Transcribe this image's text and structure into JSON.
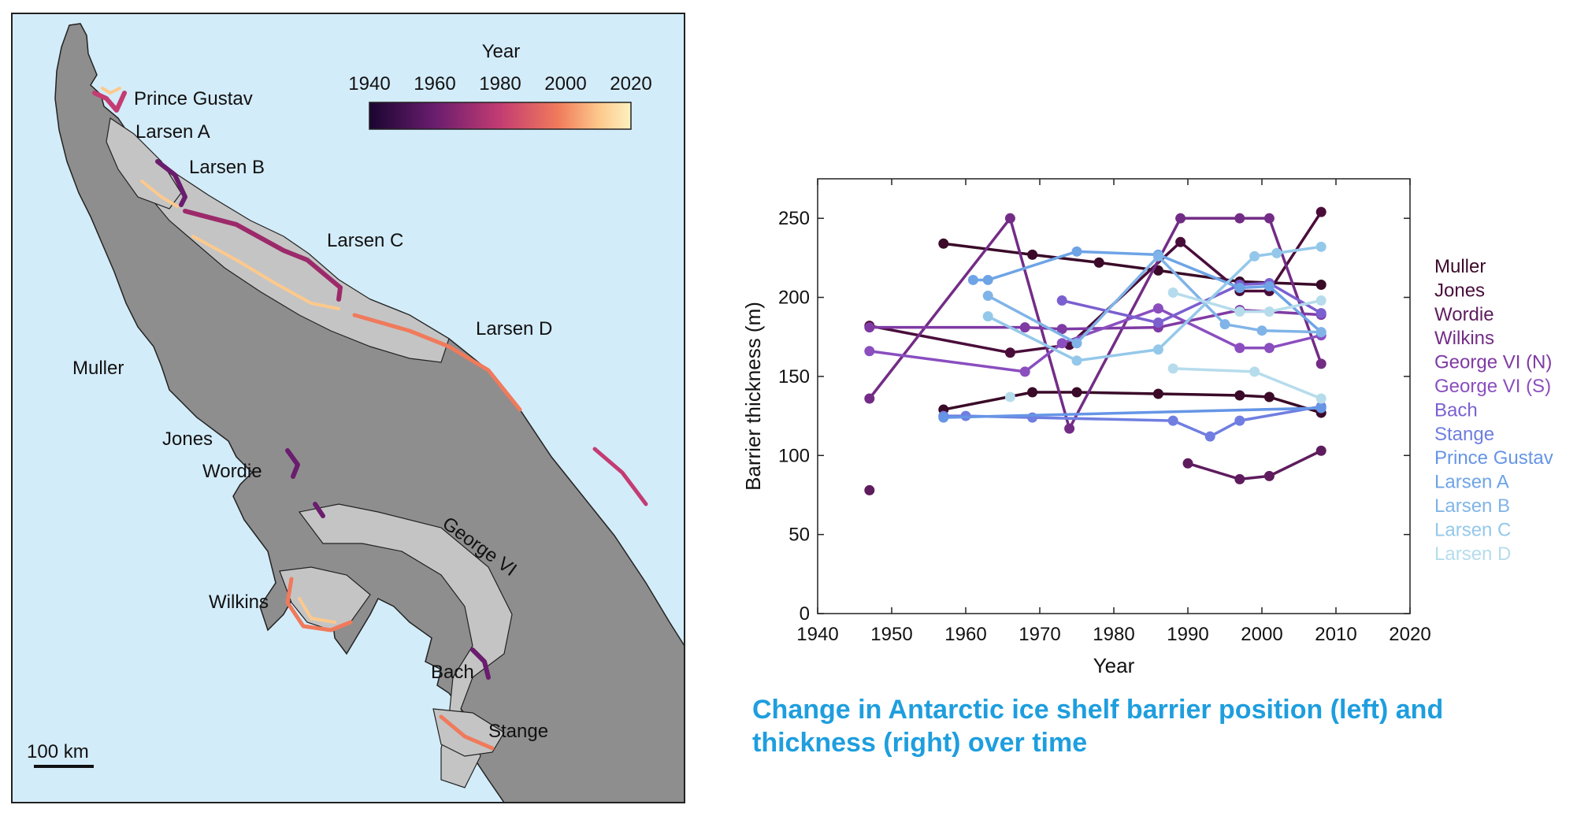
{
  "map": {
    "colorbar_title": "Year",
    "colorbar_ticks": [
      "1940",
      "1960",
      "1980",
      "2000",
      "2020"
    ],
    "colorbar_colors": [
      "#1a0530",
      "#6a1d6e",
      "#c33c72",
      "#f07a5b",
      "#fdc98c",
      "#fdf1c0"
    ],
    "labels": [
      "Prince Gustav",
      "Larsen A",
      "Larsen B",
      "Larsen C",
      "Larsen D",
      "Muller",
      "Jones",
      "Wordie",
      "George VI",
      "Wilkins",
      "Bach",
      "Stange"
    ],
    "scale_bar": "100 km",
    "colors": {
      "ocean": "#d3ecf9",
      "land": "#8e8e8e",
      "ice_shelf": "#c4c4c4"
    }
  },
  "chart_data": {
    "type": "line",
    "xlabel": "Year",
    "ylabel": "Barrier thickness (m)",
    "xlim": [
      1940,
      2020
    ],
    "ylim": [
      0,
      275
    ],
    "xticks": [
      1940,
      1950,
      1960,
      1970,
      1980,
      1990,
      2000,
      2010,
      2020
    ],
    "yticks": [
      0,
      50,
      100,
      150,
      200,
      250
    ],
    "grid": false,
    "legend_position": "right",
    "series": [
      {
        "name": "Muller",
        "color": "#3a0a28",
        "segments": [
          [
            [
              1957,
              234
            ],
            [
              1969,
              227
            ],
            [
              1978,
              222
            ],
            [
              1986,
              217
            ],
            [
              1997,
              210
            ],
            [
              2008,
              208
            ]
          ],
          [
            [
              1957,
              129
            ],
            [
              1969,
              140
            ],
            [
              1975,
              140
            ],
            [
              1986,
              139
            ],
            [
              1997,
              138
            ],
            [
              2001,
              137
            ],
            [
              2008,
              127
            ]
          ]
        ]
      },
      {
        "name": "Jones",
        "color": "#4a0d3a",
        "segments": [
          [
            [
              1947,
              182
            ],
            [
              1966,
              165
            ],
            [
              1974,
              170
            ],
            [
              1989,
              235
            ],
            [
              1997,
              204
            ],
            [
              2001,
              204
            ],
            [
              2008,
              254
            ]
          ]
        ]
      },
      {
        "name": "Wordie",
        "color": "#5e1c5e",
        "segments": [
          [
            [
              1947,
              78
            ]
          ],
          [
            [
              1990,
              95
            ],
            [
              1997,
              85
            ],
            [
              2001,
              87
            ],
            [
              2008,
              103
            ]
          ]
        ]
      },
      {
        "name": "Wilkins",
        "color": "#732c86",
        "segments": [
          [
            [
              1947,
              136
            ],
            [
              1966,
              250
            ],
            [
              1974,
              117
            ],
            [
              1989,
              250
            ],
            [
              1997,
              250
            ],
            [
              2001,
              250
            ],
            [
              2008,
              158
            ]
          ]
        ]
      },
      {
        "name": "George VI (N)",
        "color": "#7f3aa3",
        "segments": [
          [
            [
              1947,
              181
            ],
            [
              1968,
              181
            ],
            [
              1973,
              180
            ],
            [
              1986,
              181
            ],
            [
              1997,
              192
            ],
            [
              2008,
              189
            ]
          ]
        ]
      },
      {
        "name": "George VI (S)",
        "color": "#8a4ebf",
        "segments": [
          [
            [
              1947,
              166
            ],
            [
              1968,
              153
            ],
            [
              1973,
              171
            ],
            [
              1986,
              193
            ],
            [
              1997,
              168
            ],
            [
              2001,
              168
            ],
            [
              2008,
              176
            ]
          ]
        ]
      },
      {
        "name": "Bach",
        "color": "#7b5fd0",
        "segments": [
          [
            [
              1973,
              198
            ],
            [
              1986,
              184
            ],
            [
              1997,
              208
            ],
            [
              2001,
              209
            ],
            [
              2008,
              190
            ]
          ]
        ]
      },
      {
        "name": "Stange",
        "color": "#6f7ee0",
        "segments": [
          [
            [
              1957,
              125
            ],
            [
              1960,
              125
            ],
            [
              1969,
              124
            ],
            [
              1988,
              122
            ],
            [
              1993,
              112
            ],
            [
              1997,
              122
            ],
            [
              2008,
              131
            ]
          ]
        ]
      },
      {
        "name": "Prince Gustav",
        "color": "#6695e6",
        "segments": [
          [
            [
              1957,
              124
            ],
            [
              2008,
              130
            ]
          ]
        ]
      },
      {
        "name": "Larsen A",
        "color": "#6ea4e6",
        "segments": [
          [
            [
              1961,
              211
            ],
            [
              1963,
              211
            ],
            [
              1975,
              229
            ],
            [
              1986,
              227
            ],
            [
              1997,
              206
            ],
            [
              2001,
              207
            ],
            [
              2008,
              178
            ]
          ]
        ]
      },
      {
        "name": "Larsen B",
        "color": "#80b4e8",
        "segments": [
          [
            [
              1963,
              201
            ],
            [
              1975,
              171
            ],
            [
              1986,
              226
            ],
            [
              1995,
              183
            ],
            [
              2000,
              179
            ],
            [
              2008,
              178
            ]
          ]
        ]
      },
      {
        "name": "Larsen C",
        "color": "#94c8ea",
        "segments": [
          [
            [
              1963,
              188
            ],
            [
              1975,
              160
            ],
            [
              1986,
              167
            ],
            [
              1999,
              226
            ],
            [
              2002,
              228
            ],
            [
              2008,
              232
            ]
          ]
        ]
      },
      {
        "name": "Larsen D",
        "color": "#b6dcec",
        "segments": [
          [
            [
              1966,
              137
            ]
          ],
          [
            [
              1988,
              203
            ],
            [
              1997,
              191
            ],
            [
              2001,
              191
            ],
            [
              2008,
              198
            ]
          ],
          [
            [
              1988,
              155
            ],
            [
              1999,
              153
            ],
            [
              2008,
              136
            ]
          ]
        ]
      }
    ]
  },
  "caption": {
    "line1": "Change in Antarctic ice shelf barrier position (left) and",
    "line2": "thickness (right) over time"
  }
}
